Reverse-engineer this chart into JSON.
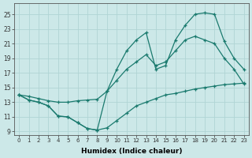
{
  "xlabel": "Humidex (Indice chaleur)",
  "xlim": [
    -0.5,
    23.5
  ],
  "ylim": [
    8.5,
    26.5
  ],
  "xticks": [
    0,
    1,
    2,
    3,
    4,
    5,
    6,
    7,
    8,
    9,
    10,
    11,
    12,
    13,
    14,
    15,
    16,
    17,
    18,
    19,
    20,
    21,
    22,
    23
  ],
  "yticks": [
    9,
    11,
    13,
    15,
    17,
    19,
    21,
    23,
    25
  ],
  "line_color": "#1a7a6e",
  "bg_color": "#cce8e8",
  "grid_color": "#b0d4d4",
  "line_min_x": [
    0,
    1,
    2,
    3,
    4,
    5,
    6,
    7,
    8,
    9,
    10,
    11,
    12,
    13,
    14,
    15,
    16,
    17,
    18,
    19,
    20,
    21,
    22,
    23
  ],
  "line_min_y": [
    14.0,
    13.3,
    13.0,
    12.5,
    11.1,
    11.0,
    10.2,
    9.4,
    9.2,
    9.5,
    10.5,
    11.5,
    12.5,
    13.0,
    13.5,
    14.0,
    14.2,
    14.5,
    14.8,
    15.0,
    15.2,
    15.4,
    15.5,
    15.6
  ],
  "line_max_x": [
    0,
    1,
    2,
    3,
    4,
    5,
    6,
    7,
    8,
    9,
    10,
    11,
    12,
    13,
    14,
    15,
    16,
    17,
    18,
    19,
    20,
    21,
    22,
    23
  ],
  "line_max_y": [
    14.0,
    13.3,
    13.0,
    12.5,
    11.1,
    11.0,
    10.2,
    9.4,
    9.2,
    14.5,
    17.5,
    20.0,
    21.5,
    22.5,
    17.5,
    18.0,
    21.5,
    23.5,
    25.0,
    25.2,
    25.0,
    21.3,
    19.0,
    17.5
  ],
  "line_mid_x": [
    0,
    1,
    2,
    3,
    4,
    5,
    6,
    7,
    8,
    9,
    10,
    11,
    12,
    13,
    14,
    15,
    16,
    17,
    18,
    19,
    20,
    21,
    22,
    23
  ],
  "line_mid_y": [
    14.0,
    13.8,
    13.5,
    13.2,
    13.0,
    13.0,
    13.2,
    13.3,
    13.4,
    14.5,
    16.0,
    17.5,
    18.5,
    19.5,
    18.0,
    18.5,
    20.0,
    21.5,
    22.0,
    21.5,
    21.0,
    19.0,
    17.5,
    15.5
  ]
}
